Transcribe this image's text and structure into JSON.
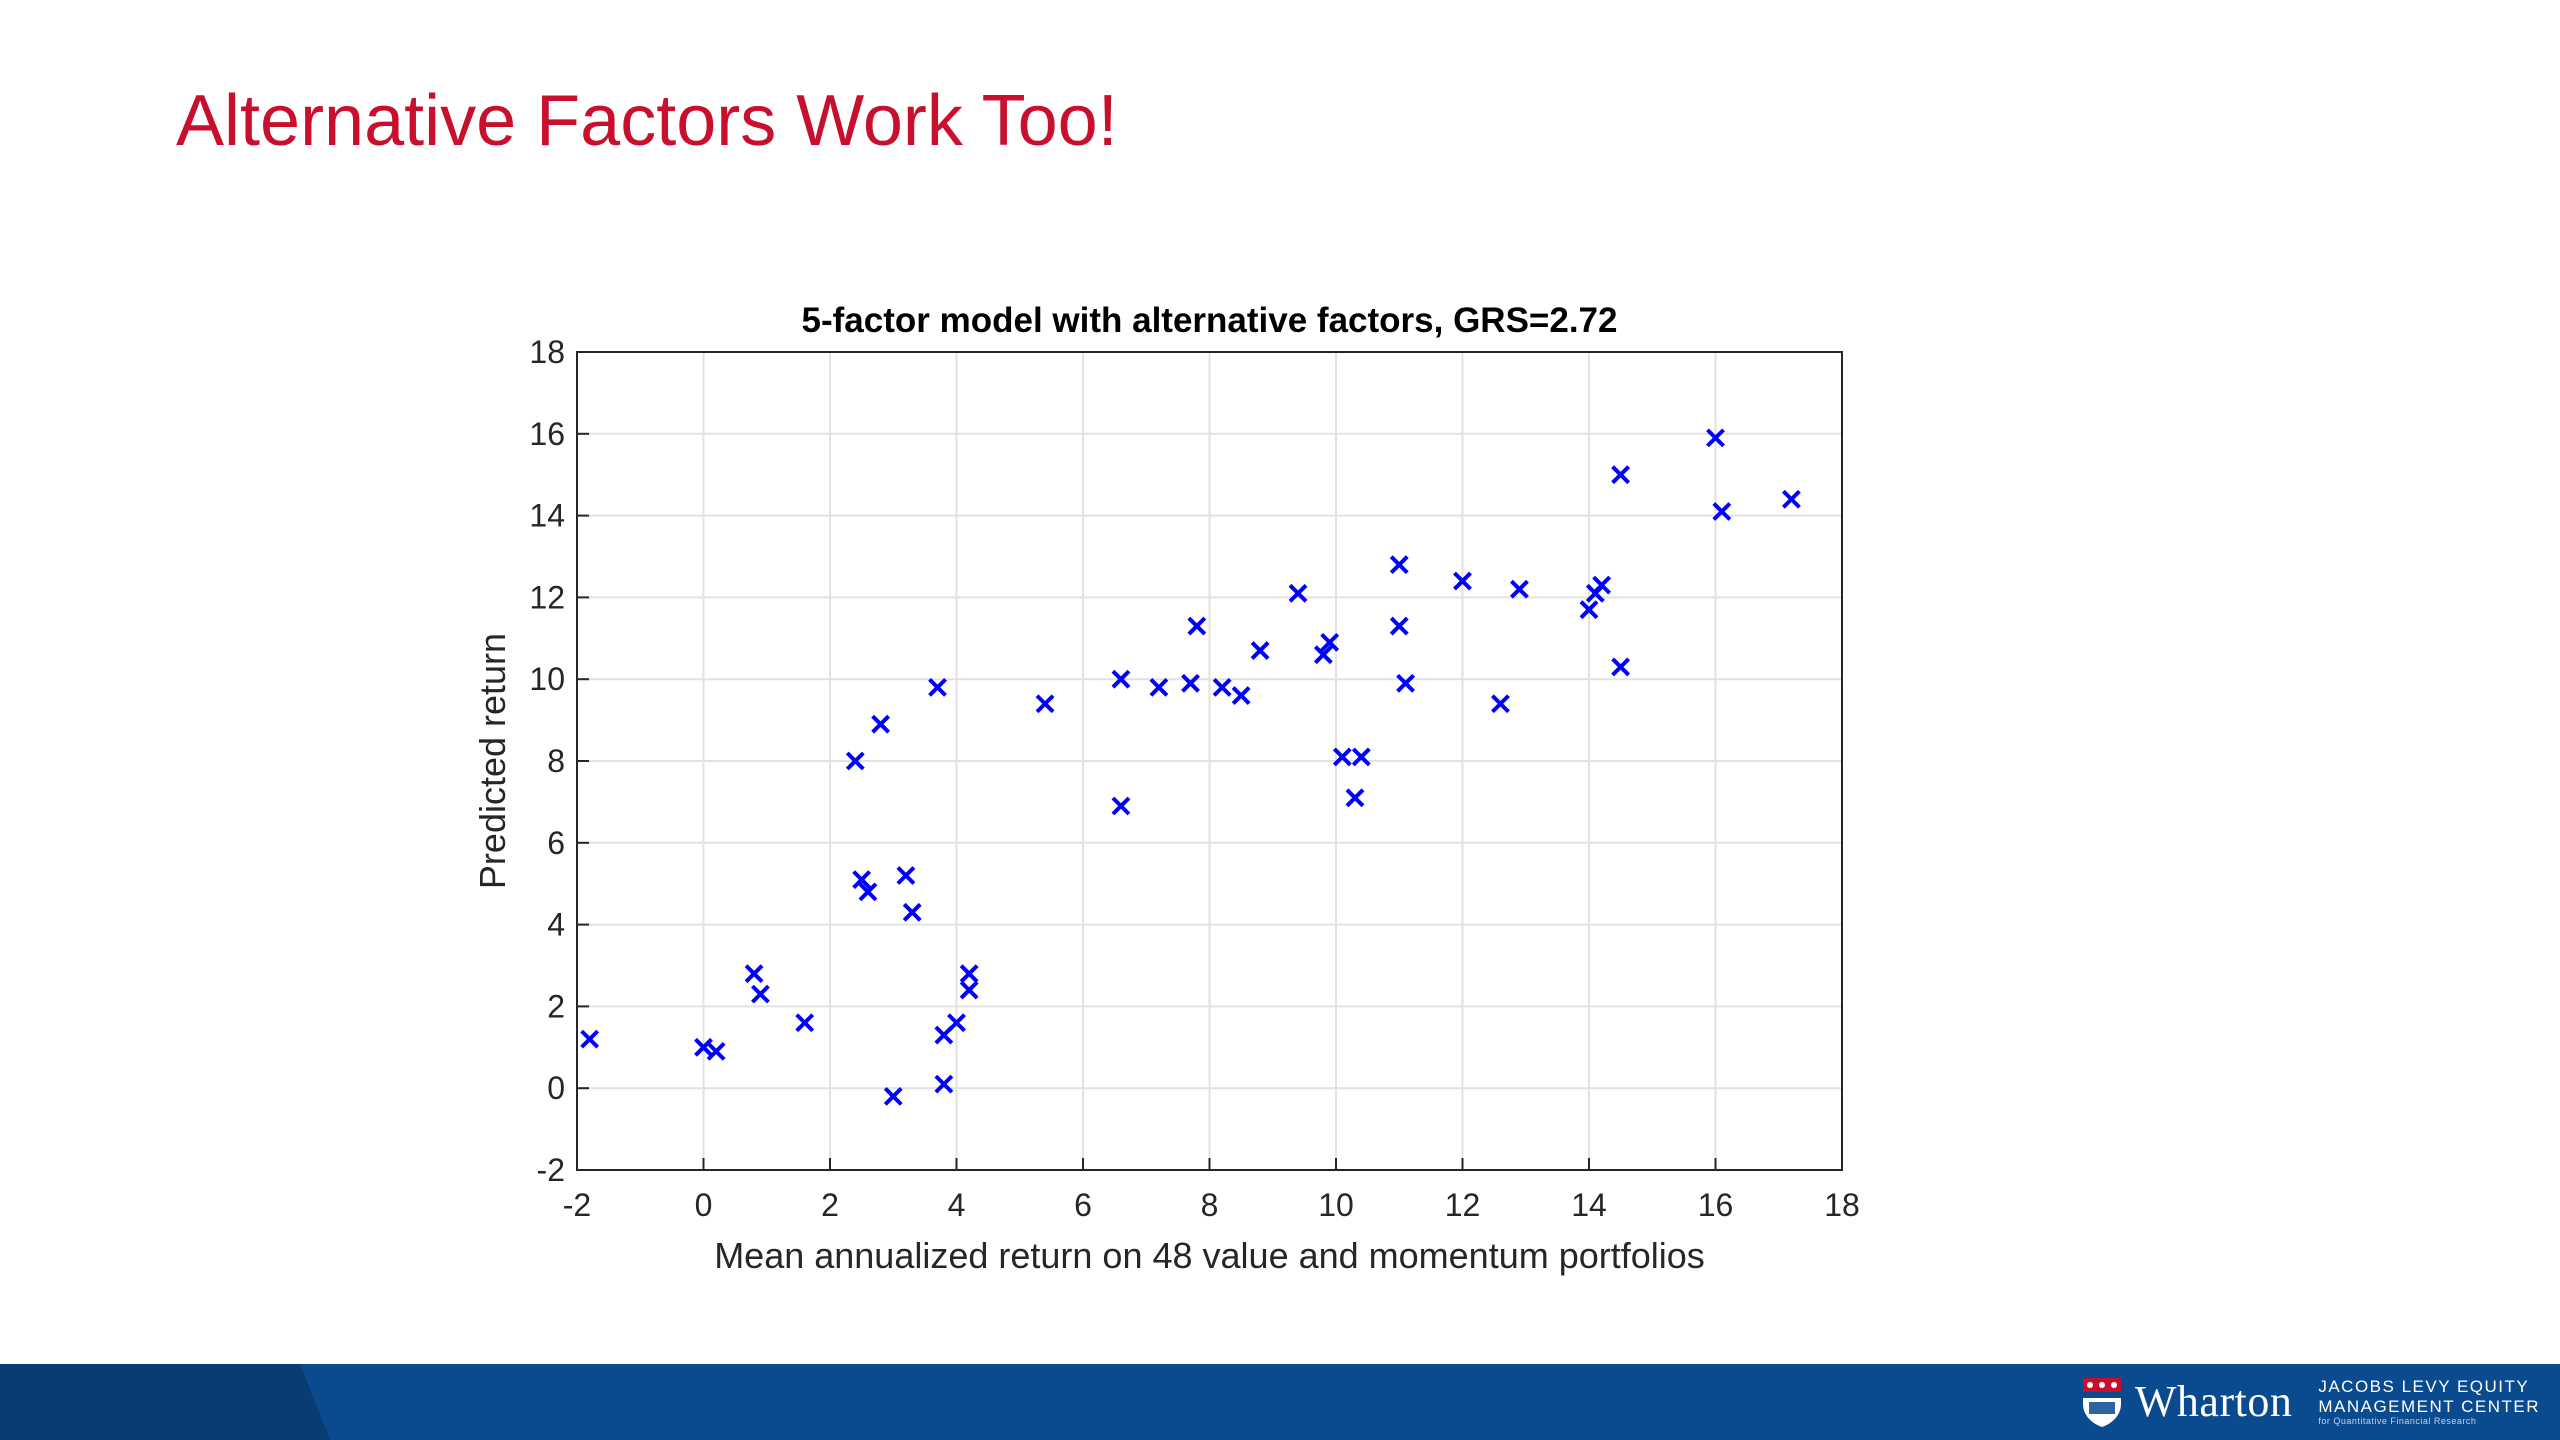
{
  "slide": {
    "title": "Alternative Factors Work Too!",
    "title_color": "#c8102e"
  },
  "chart_data": {
    "type": "scatter",
    "title": "5-factor model with alternative factors, GRS=2.72",
    "xlabel": "Mean annualized return on 48 value and momentum portfolios",
    "ylabel": "Predicted return",
    "xlim": [
      -2,
      18
    ],
    "ylim": [
      -2,
      18
    ],
    "xticks": [
      -2,
      0,
      2,
      4,
      6,
      8,
      10,
      12,
      14,
      16,
      18
    ],
    "yticks": [
      -2,
      0,
      2,
      4,
      6,
      8,
      10,
      12,
      14,
      16,
      18
    ],
    "grid": true,
    "marker": "x",
    "marker_color": "#0000ff",
    "points": [
      [
        -1.8,
        1.2
      ],
      [
        0.0,
        1.0
      ],
      [
        0.2,
        0.9
      ],
      [
        0.8,
        2.8
      ],
      [
        0.9,
        2.3
      ],
      [
        1.6,
        1.6
      ],
      [
        2.4,
        8.0
      ],
      [
        2.5,
        5.1
      ],
      [
        2.6,
        4.8
      ],
      [
        2.8,
        8.9
      ],
      [
        3.0,
        -0.2
      ],
      [
        3.2,
        5.2
      ],
      [
        3.3,
        4.3
      ],
      [
        3.7,
        9.8
      ],
      [
        3.8,
        0.1
      ],
      [
        3.8,
        1.3
      ],
      [
        4.0,
        1.6
      ],
      [
        4.2,
        2.4
      ],
      [
        4.2,
        2.8
      ],
      [
        5.4,
        9.4
      ],
      [
        6.6,
        10.0
      ],
      [
        6.6,
        6.9
      ],
      [
        7.2,
        9.8
      ],
      [
        7.7,
        9.9
      ],
      [
        7.8,
        11.3
      ],
      [
        8.2,
        9.8
      ],
      [
        8.5,
        9.6
      ],
      [
        8.8,
        10.7
      ],
      [
        9.4,
        12.1
      ],
      [
        9.8,
        10.6
      ],
      [
        9.9,
        10.9
      ],
      [
        10.1,
        8.1
      ],
      [
        10.3,
        7.1
      ],
      [
        10.4,
        8.1
      ],
      [
        11.0,
        12.8
      ],
      [
        11.0,
        11.3
      ],
      [
        11.1,
        9.9
      ],
      [
        12.0,
        12.4
      ],
      [
        12.6,
        9.4
      ],
      [
        12.9,
        12.2
      ],
      [
        14.0,
        11.7
      ],
      [
        14.1,
        12.1
      ],
      [
        14.2,
        12.3
      ],
      [
        14.5,
        10.3
      ],
      [
        14.5,
        15.0
      ],
      [
        16.0,
        15.9
      ],
      [
        16.1,
        14.1
      ],
      [
        17.2,
        14.4
      ]
    ]
  },
  "footer": {
    "bar_color": "#0a4a8e",
    "tab_color": "#083c73",
    "brand": "Wharton",
    "center_line1": "JACOBS LEVY EQUITY",
    "center_line2": "MANAGEMENT CENTER",
    "center_line3": "for Quantitative Financial Research"
  }
}
